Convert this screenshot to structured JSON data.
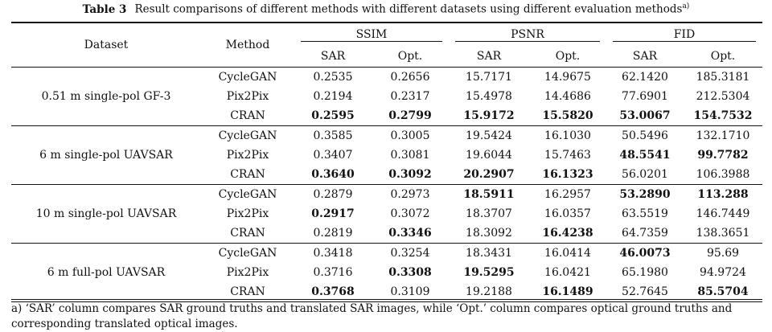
{
  "caption": {
    "label": "Table 3",
    "text": "Result comparisons of different methods with different datasets using different evaluation methods",
    "superscript": "a)"
  },
  "headers": {
    "dataset": "Dataset",
    "method": "Method",
    "metrics": [
      "SSIM",
      "PSNR",
      "FID"
    ],
    "sub": [
      "SAR",
      "Opt.",
      "SAR",
      "Opt.",
      "SAR",
      "Opt."
    ]
  },
  "groups": [
    {
      "dataset": "0.51 m single-pol GF-3",
      "rows": [
        {
          "method": "CycleGAN",
          "values": [
            "0.2535",
            "0.2656",
            "15.7171",
            "14.9675",
            "62.1420",
            "185.3181"
          ],
          "bold": [
            false,
            false,
            false,
            false,
            false,
            false
          ]
        },
        {
          "method": "Pix2Pix",
          "values": [
            "0.2194",
            "0.2317",
            "15.4978",
            "14.4686",
            "77.6901",
            "212.5304"
          ],
          "bold": [
            false,
            false,
            false,
            false,
            false,
            false
          ]
        },
        {
          "method": "CRAN",
          "values": [
            "0.2595",
            "0.2799",
            "15.9172",
            "15.5820",
            "53.0067",
            "154.7532"
          ],
          "bold": [
            true,
            true,
            true,
            true,
            true,
            true
          ]
        }
      ]
    },
    {
      "dataset": "6 m single-pol UAVSAR",
      "rows": [
        {
          "method": "CycleGAN",
          "values": [
            "0.3585",
            "0.3005",
            "19.5424",
            "16.1030",
            "50.5496",
            "132.1710"
          ],
          "bold": [
            false,
            false,
            false,
            false,
            false,
            false
          ]
        },
        {
          "method": "Pix2Pix",
          "values": [
            "0.3407",
            "0.3081",
            "19.6044",
            "15.7463",
            "48.5541",
            "99.7782"
          ],
          "bold": [
            false,
            false,
            false,
            false,
            true,
            true
          ]
        },
        {
          "method": "CRAN",
          "values": [
            "0.3640",
            "0.3092",
            "20.2907",
            "16.1323",
            "56.0201",
            "106.3988"
          ],
          "bold": [
            true,
            true,
            true,
            true,
            false,
            false
          ]
        }
      ]
    },
    {
      "dataset": "10 m single-pol UAVSAR",
      "rows": [
        {
          "method": "CycleGAN",
          "values": [
            "0.2879",
            "0.2973",
            "18.5911",
            "16.2957",
            "53.2890",
            "113.288"
          ],
          "bold": [
            false,
            false,
            true,
            false,
            true,
            true
          ]
        },
        {
          "method": "Pix2Pix",
          "values": [
            "0.2917",
            "0.3072",
            "18.3707",
            "16.0357",
            "63.5519",
            "146.7449"
          ],
          "bold": [
            true,
            false,
            false,
            false,
            false,
            false
          ]
        },
        {
          "method": "CRAN",
          "values": [
            "0.2819",
            "0.3346",
            "18.3092",
            "16.4238",
            "64.7359",
            "138.3651"
          ],
          "bold": [
            false,
            true,
            false,
            true,
            false,
            false
          ]
        }
      ]
    },
    {
      "dataset": "6 m full-pol UAVSAR",
      "rows": [
        {
          "method": "CycleGAN",
          "values": [
            "0.3418",
            "0.3254",
            "18.3431",
            "16.0414",
            "46.0073",
            "95.69"
          ],
          "bold": [
            false,
            false,
            false,
            false,
            true,
            false
          ]
        },
        {
          "method": "Pix2Pix",
          "values": [
            "0.3716",
            "0.3308",
            "19.5295",
            "16.0421",
            "65.1980",
            "94.9724"
          ],
          "bold": [
            false,
            true,
            true,
            false,
            false,
            false
          ]
        },
        {
          "method": "CRAN",
          "values": [
            "0.3768",
            "0.3109",
            "19.2188",
            "16.1489",
            "52.7645",
            "85.5704"
          ],
          "bold": [
            true,
            false,
            false,
            true,
            false,
            true
          ]
        }
      ]
    }
  ],
  "footnote": "a) ‘SAR’ column compares SAR ground truths and translated SAR images, while ‘Opt.’ column compares optical ground truths and corresponding translated optical images."
}
